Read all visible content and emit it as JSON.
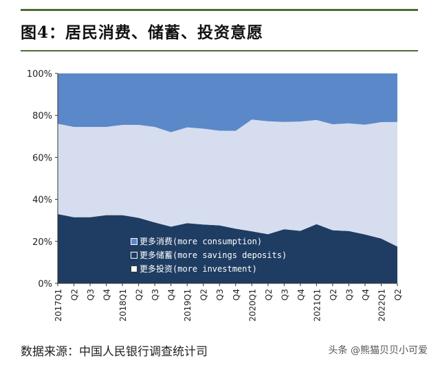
{
  "title": "图4：居民消费、储蓄、投资意愿",
  "source": "数据来源：中国人民银行调查统计司",
  "watermark": "头条 @熊猫贝贝小可爱",
  "colors": {
    "consumption": "#5b88c9",
    "savings": "#1f3d63",
    "investment": "#d5ddef",
    "rule": "#4b6b2e"
  },
  "chart_data": {
    "type": "area",
    "stacked": true,
    "x": [
      "2017Q1",
      "Q2",
      "Q3",
      "Q4",
      "2018Q1",
      "Q2",
      "Q3",
      "Q4",
      "2019Q1",
      "Q2",
      "Q3",
      "Q4",
      "2020Q1",
      "Q2",
      "Q3",
      "Q4",
      "2021Q1",
      "Q2",
      "Q3",
      "Q4",
      "2022Q1",
      "Q2"
    ],
    "xlabels": [
      "2017Q1",
      "Q2",
      "Q3",
      "Q4",
      "2018Q1",
      "Q2",
      "Q3",
      "Q4",
      "2019Q1",
      "Q2",
      "Q3",
      "Q4",
      "2020Q1",
      "Q2",
      "Q3",
      "Q4",
      "2021Q1",
      "Q2",
      "Q3",
      "Q4",
      "2022Q1",
      "Q2"
    ],
    "ylim": [
      0,
      100
    ],
    "yticks": [
      "0%",
      "20%",
      "40%",
      "60%",
      "80%",
      "100%"
    ],
    "series": [
      {
        "name": "更多储蓄(more savings deposits)",
        "values": [
          33.0,
          31.5,
          31.5,
          32.5,
          32.5,
          31.2,
          29.0,
          27.0,
          28.7,
          28.0,
          27.6,
          26.0,
          24.8,
          23.4,
          25.8,
          25.0,
          28.2,
          25.3,
          24.9,
          23.3,
          21.3,
          17.5
        ]
      },
      {
        "name": "更多投资(more investment)",
        "values": [
          43.0,
          43.0,
          43.0,
          42.0,
          43.0,
          44.3,
          45.5,
          45.0,
          45.6,
          45.7,
          45.1,
          46.6,
          53.2,
          53.8,
          51.1,
          52.1,
          49.6,
          50.5,
          51.3,
          52.3,
          55.5,
          59.4
        ]
      },
      {
        "name": "更多消费(more consumption)",
        "values": [
          24.0,
          25.5,
          25.5,
          25.5,
          24.5,
          24.5,
          25.5,
          28.0,
          25.7,
          26.3,
          27.3,
          27.4,
          22.0,
          22.8,
          23.1,
          22.9,
          22.2,
          24.2,
          23.8,
          24.4,
          23.2,
          23.1
        ]
      }
    ],
    "legend": [
      {
        "label": "更多消费(more consumption)",
        "color_key": "consumption"
      },
      {
        "label": "更多储蓄(more savings deposits)",
        "color_key": "savings"
      },
      {
        "label": "更多投资(more investment)",
        "color_key": "investment"
      }
    ],
    "legend_position": "bottom-left",
    "grid": false
  }
}
